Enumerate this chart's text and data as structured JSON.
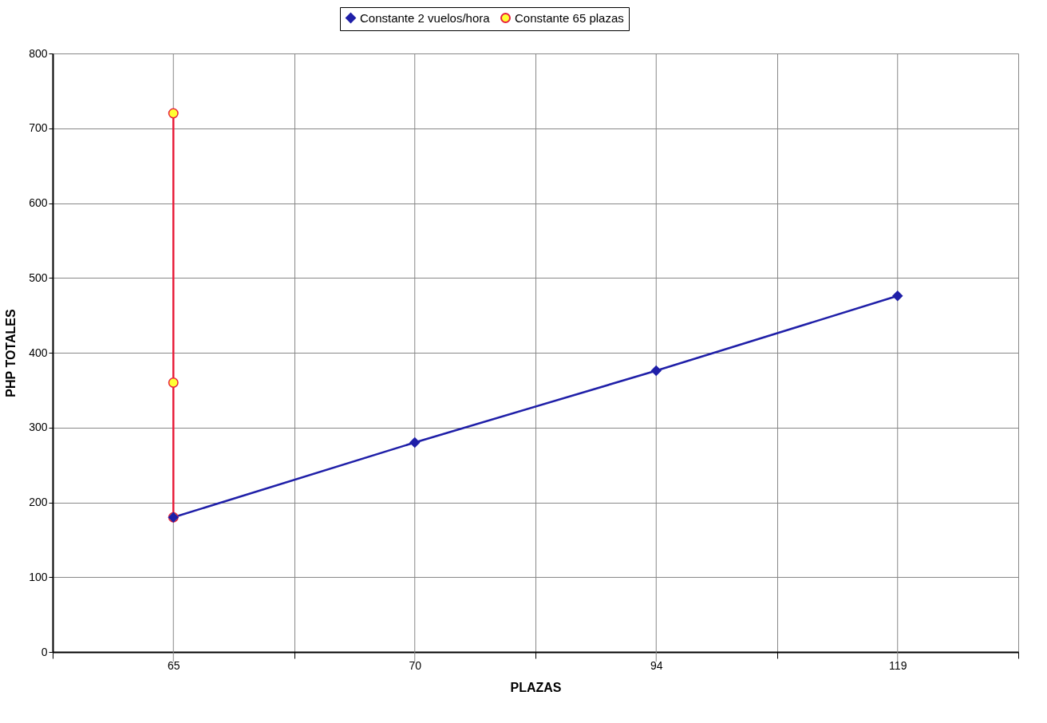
{
  "chart_data": {
    "type": "line",
    "xlabel": "PLAZAS",
    "ylabel": "PHP TOTALES",
    "categories": [
      "65",
      "70",
      "94",
      "119"
    ],
    "series": [
      {
        "name": "Constante 2 vuelos/hora",
        "color": "#1f1fa8",
        "marker": "diamond",
        "values": [
          180,
          280,
          376,
          476
        ]
      },
      {
        "name": "Constante 65 plazas",
        "color": "#e8203c",
        "marker": "circle",
        "x": [
          "65",
          "65",
          "65"
        ],
        "values": [
          180,
          360,
          720
        ]
      }
    ],
    "ylim": [
      0,
      800
    ],
    "yticks": [
      0,
      100,
      200,
      300,
      400,
      500,
      600,
      700,
      800
    ],
    "grid": true,
    "legend": "top"
  }
}
